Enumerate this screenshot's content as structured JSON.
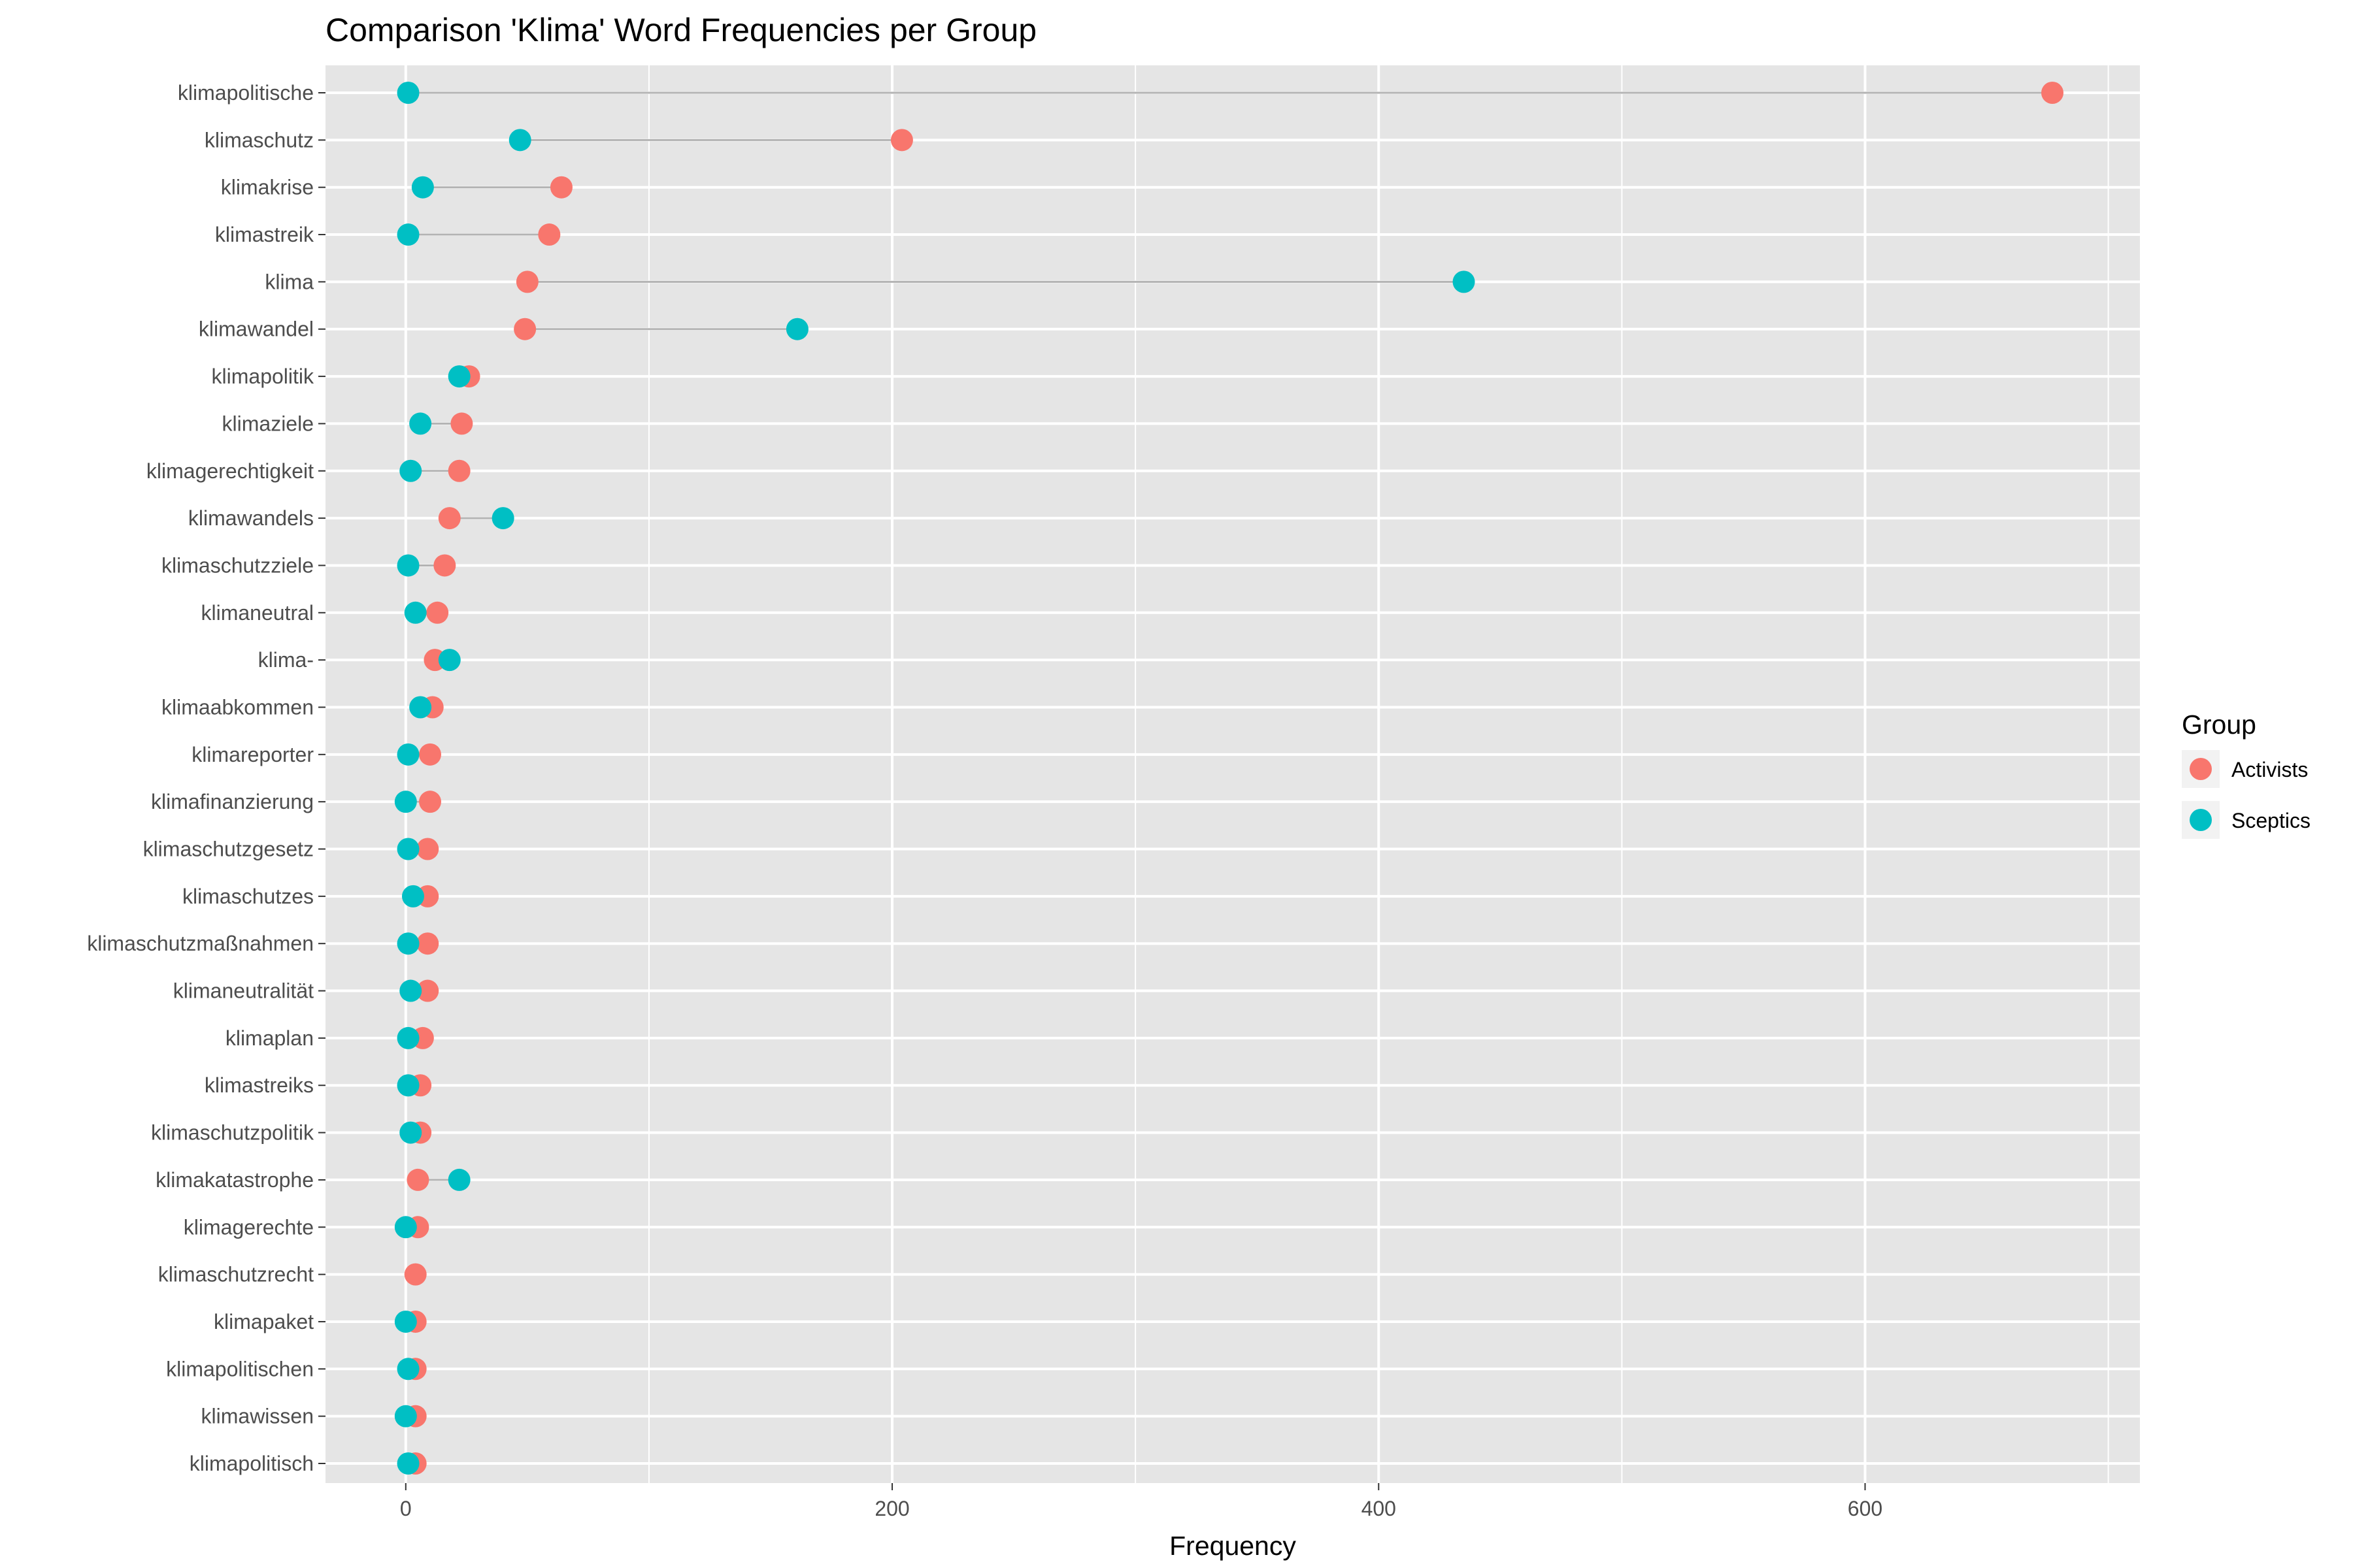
{
  "chart_data": {
    "type": "dumbbell",
    "title": "Comparison 'Klima' Word Frequencies per Group",
    "xlabel": "Frequency",
    "ylabel": "",
    "xlim": [
      -33,
      713
    ],
    "x_ticks": [
      0,
      200,
      400,
      600
    ],
    "x_minor_ticks": [
      100,
      300,
      500,
      700
    ],
    "grid": true,
    "legend": {
      "title": "Group",
      "position": "right"
    },
    "colors": {
      "panel_background": "#e5e5e5",
      "grid": "#ffffff",
      "segment": "#b3b3b3"
    },
    "categories": [
      "klimapolitische",
      "klimaschutz",
      "klimakrise",
      "klimastreik",
      "klima",
      "klimawandel",
      "klimapolitik",
      "klimaziele",
      "klimagerechtigkeit",
      "klimawandels",
      "klimaschutzziele",
      "klimaneutral",
      "klima-",
      "klimaabkommen",
      "klimareporter",
      "klimafinanzierung",
      "klimaschutzgesetz",
      "klimaschutzes",
      "klimaschutzmaßnahmen",
      "klimaneutralität",
      "klimaplan",
      "klimastreiks",
      "klimaschutzpolitik",
      "klimakatastrophe",
      "klimagerechte",
      "klimaschutzrecht",
      "klimapaket",
      "klimapolitischen",
      "klimawissen",
      "klimapolitisch"
    ],
    "series": [
      {
        "name": "Activists",
        "color": "#f8766d",
        "values": [
          677,
          204,
          64,
          59,
          50,
          49,
          26,
          23,
          22,
          18,
          16,
          13,
          12,
          11,
          10,
          10,
          9,
          9,
          9,
          9,
          7,
          6,
          6,
          5,
          5,
          4,
          4,
          4,
          4,
          4
        ]
      },
      {
        "name": "Sceptics",
        "color": "#00bfc4",
        "values": [
          1,
          47,
          7,
          1,
          null,
          161,
          22,
          6,
          2,
          40,
          1,
          4,
          18,
          6,
          1,
          0,
          1,
          3,
          1,
          2,
          1,
          1,
          2,
          22,
          0,
          null,
          0,
          1,
          0,
          1
        ]
      }
    ],
    "extra_points": {
      "klima_sceptics": 435
    }
  }
}
